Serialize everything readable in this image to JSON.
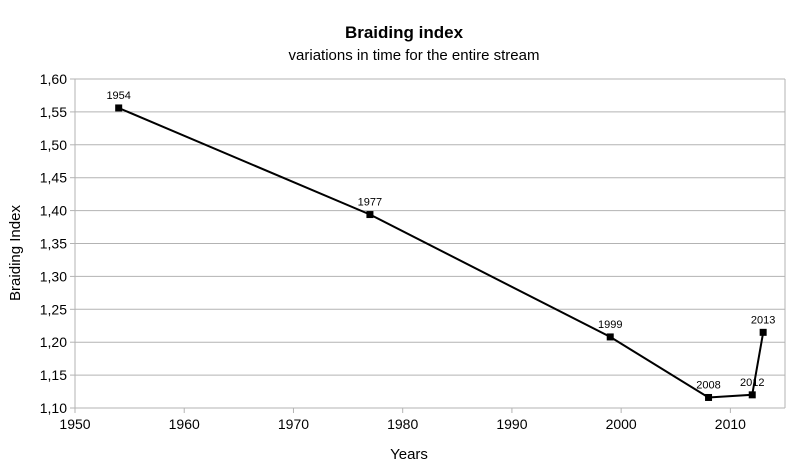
{
  "chart_data": {
    "type": "line",
    "title": "Braiding index",
    "subtitle": "variations in time for the entire stream",
    "xlabel": "Years",
    "ylabel": "Braiding Index",
    "xlim": [
      1950,
      2015
    ],
    "ylim": [
      1.1,
      1.6
    ],
    "x_ticks": [
      1950,
      1960,
      1970,
      1980,
      1990,
      2000,
      2010
    ],
    "y_ticks": [
      "1,10",
      "1,15",
      "1,20",
      "1,25",
      "1,30",
      "1,35",
      "1,40",
      "1,45",
      "1,50",
      "1,55",
      "1,60"
    ],
    "y_tick_values": [
      1.1,
      1.15,
      1.2,
      1.25,
      1.3,
      1.35,
      1.4,
      1.45,
      1.5,
      1.55,
      1.6
    ],
    "grid": true,
    "legend": "none",
    "series": [
      {
        "x": [
          1954,
          1977,
          1999,
          2008,
          2012,
          2013
        ],
        "values": [
          1.556,
          1.394,
          1.208,
          1.116,
          1.12,
          1.215
        ],
        "point_labels": [
          "1954",
          "1977",
          "1999",
          "2008",
          "2012",
          "2013"
        ],
        "color": "#000000"
      }
    ]
  }
}
